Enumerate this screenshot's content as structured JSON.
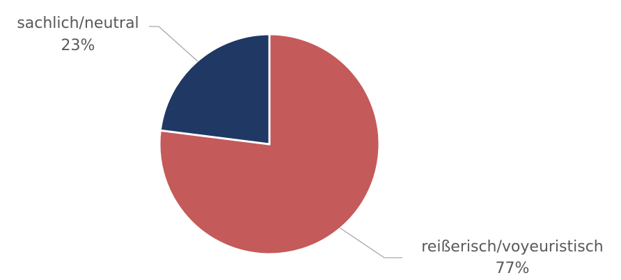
{
  "chart_data": {
    "type": "pie",
    "title": "",
    "start_angle_deg": 0,
    "direction": "clockwise",
    "slices": [
      {
        "label": "reißerisch/voyeuristisch",
        "value": 77,
        "value_label": "77%",
        "color": "#c55a5a"
      },
      {
        "label": "sachlich/neutral",
        "value": 23,
        "value_label": "23%",
        "color": "#203864"
      }
    ],
    "legend": "none"
  }
}
